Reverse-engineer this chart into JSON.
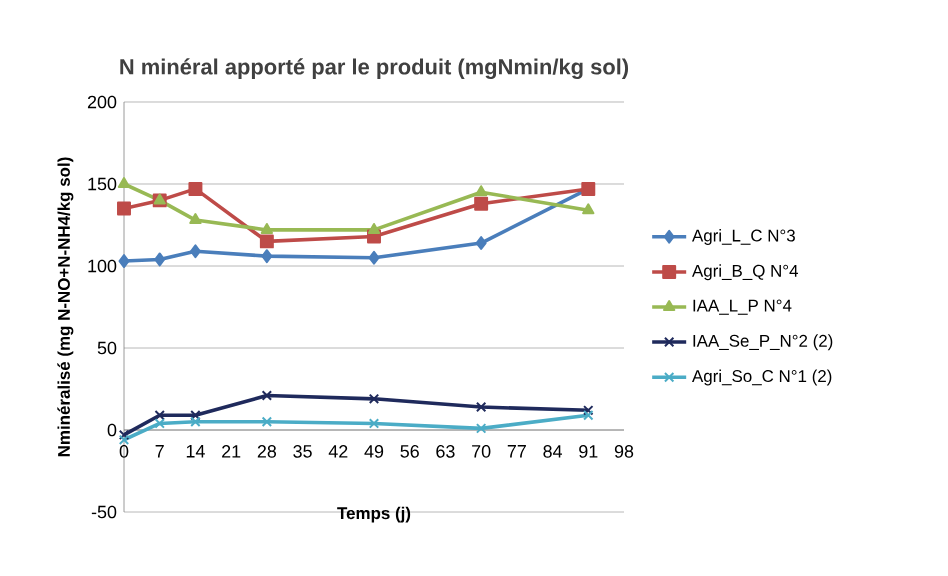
{
  "chart_data": {
    "type": "line",
    "title": "N minéral apporté par le produit (mgNmin/kg sol)",
    "xlabel": "Temps (j)",
    "ylabel": "Nminéralisé (mg N-NO+N-NH4/kg sol)",
    "x": [
      0,
      7,
      14,
      28,
      49,
      70,
      91
    ],
    "series": [
      {
        "name": "Agri_L_C N°3",
        "color": "#4a7ebb",
        "marker": "diamond",
        "values": [
          103,
          104,
          109,
          106,
          105,
          114,
          147
        ]
      },
      {
        "name": "Agri_B_Q N°4",
        "color": "#be4b48",
        "marker": "square",
        "values": [
          135,
          140,
          147,
          115,
          118,
          138,
          147
        ]
      },
      {
        "name": "IAA_L_P N°4",
        "color": "#98b954",
        "marker": "triangle",
        "values": [
          150,
          140,
          128,
          122,
          122,
          145,
          134
        ]
      },
      {
        "name": "IAA_Se_P_N°2 (2)",
        "color": "#1f2a5c",
        "marker": "cross",
        "values": [
          -3,
          9,
          9,
          21,
          19,
          14,
          12
        ]
      },
      {
        "name": "Agri_So_C N°1 (2)",
        "color": "#4bacc6",
        "marker": "cross",
        "values": [
          -6,
          4,
          5,
          5,
          4,
          1,
          9
        ]
      }
    ],
    "xlim": [
      0,
      98
    ],
    "xticks": [
      0,
      7,
      14,
      21,
      28,
      35,
      42,
      49,
      56,
      63,
      70,
      77,
      84,
      91,
      98
    ],
    "ylim": [
      -50,
      200
    ],
    "yticks": [
      -50,
      0,
      50,
      100,
      150,
      200
    ],
    "grid": "y",
    "legend": "right"
  }
}
